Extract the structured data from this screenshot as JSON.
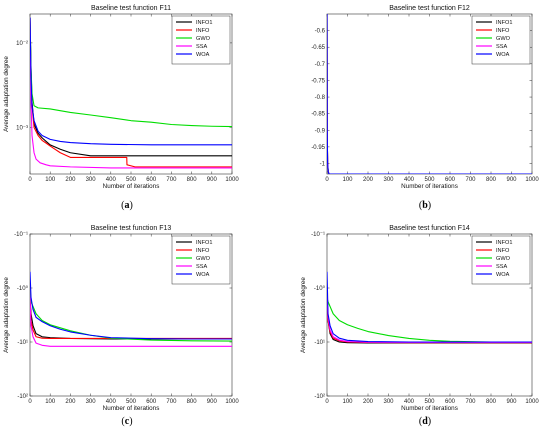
{
  "chart_data": [
    {
      "type": "line",
      "title": "Baseline test function F11",
      "xlabel": "Number of iterations",
      "ylabel": "Average adaptation degree",
      "yscale": "log",
      "xlim": [
        0,
        1000
      ],
      "ylim": [
        0.00028,
        0.022
      ],
      "x_ticks": [
        "0",
        "100",
        "200",
        "300",
        "400",
        "500",
        "600",
        "700",
        "800",
        "900",
        "1000"
      ],
      "y_ticks": [
        {
          "v": 0.01,
          "label": "10⁻²"
        },
        {
          "v": 0.001,
          "label": "10⁻³"
        }
      ],
      "caption_mark": "a",
      "legend_position": "top-right",
      "series": [
        {
          "name": "INFO1",
          "color": "#000000",
          "x": [
            0,
            5,
            10,
            20,
            40,
            60,
            80,
            100,
            150,
            200,
            300,
            500,
            1000
          ],
          "y": [
            0.02,
            0.005,
            0.002,
            0.0011,
            0.00085,
            0.00075,
            0.00068,
            0.00062,
            0.00055,
            0.0005,
            0.00046,
            0.00046,
            0.00046
          ]
        },
        {
          "name": "INFO",
          "color": "#ff0000",
          "x": [
            0,
            5,
            10,
            20,
            40,
            60,
            80,
            100,
            150,
            200,
            300,
            479,
            480,
            520,
            1000
          ],
          "y": [
            0.02,
            0.004,
            0.0018,
            0.001,
            0.0008,
            0.0007,
            0.00065,
            0.0006,
            0.0005,
            0.00044,
            0.00044,
            0.00044,
            0.00036,
            0.00034,
            0.00034
          ]
        },
        {
          "name": "GWO",
          "color": "#00dd00",
          "x": [
            0,
            5,
            10,
            20,
            40,
            100,
            200,
            300,
            400,
            500,
            600,
            700,
            800,
            900,
            1000
          ],
          "y": [
            0.02,
            0.005,
            0.0025,
            0.0018,
            0.0017,
            0.00165,
            0.0015,
            0.0014,
            0.0013,
            0.0012,
            0.00115,
            0.00108,
            0.00105,
            0.00103,
            0.00102
          ]
        },
        {
          "name": "SSA",
          "color": "#ff00ff",
          "x": [
            0,
            5,
            10,
            20,
            30,
            50,
            80,
            100,
            200,
            400,
            1000
          ],
          "y": [
            0.02,
            0.002,
            0.0008,
            0.0005,
            0.00042,
            0.00038,
            0.00036,
            0.00035,
            0.00034,
            0.00033,
            0.00033
          ]
        },
        {
          "name": "WOA",
          "color": "#0000ff",
          "x": [
            0,
            5,
            10,
            20,
            40,
            60,
            100,
            150,
            200,
            300,
            400,
            600,
            800,
            1000
          ],
          "y": [
            0.02,
            0.004,
            0.0018,
            0.0012,
            0.0009,
            0.0008,
            0.00072,
            0.00068,
            0.00066,
            0.00064,
            0.00063,
            0.00062,
            0.00062,
            0.00062
          ]
        }
      ]
    },
    {
      "type": "line",
      "title": "Baseline test function F12",
      "xlabel": "Number of iterations",
      "ylabel": "",
      "yscale": "linear",
      "xlim": [
        0,
        1000
      ],
      "ylim": [
        -1.0316,
        -0.55
      ],
      "x_ticks": [
        "0",
        "100",
        "200",
        "300",
        "400",
        "500",
        "600",
        "700",
        "800",
        "900",
        "1000"
      ],
      "y_ticks": [
        {
          "v": -0.6,
          "label": "-0.6"
        },
        {
          "v": -0.65,
          "label": "-0.65"
        },
        {
          "v": -0.7,
          "label": "-0.7"
        },
        {
          "v": -0.75,
          "label": "-0.75"
        },
        {
          "v": -0.8,
          "label": "-0.8"
        },
        {
          "v": -0.85,
          "label": "-0.85"
        },
        {
          "v": -0.9,
          "label": "-0.9"
        },
        {
          "v": -0.95,
          "label": "-0.95"
        },
        {
          "v": -1.0,
          "label": "-1"
        }
      ],
      "caption_mark": "b",
      "legend_position": "top-right",
      "series": [
        {
          "name": "INFO1",
          "color": "#000000",
          "x": [
            0,
            1,
            3,
            6,
            10,
            1000
          ],
          "y": [
            -0.55,
            -0.9,
            -1.0,
            -1.025,
            -1.0316,
            -1.0316
          ]
        },
        {
          "name": "INFO",
          "color": "#ff0000",
          "x": [
            0,
            1,
            3,
            6,
            10,
            1000
          ],
          "y": [
            -0.55,
            -0.9,
            -1.0,
            -1.025,
            -1.0316,
            -1.0316
          ]
        },
        {
          "name": "GWO",
          "color": "#00dd00",
          "x": [
            0,
            1,
            3,
            6,
            10,
            1000
          ],
          "y": [
            -0.55,
            -0.9,
            -1.0,
            -1.025,
            -1.0316,
            -1.0316
          ]
        },
        {
          "name": "SSA",
          "color": "#ff00ff",
          "x": [
            0,
            1,
            3,
            6,
            10,
            1000
          ],
          "y": [
            -0.55,
            -0.9,
            -1.0,
            -1.025,
            -1.0316,
            -1.0316
          ]
        },
        {
          "name": "WOA",
          "color": "#0000ff",
          "x": [
            0,
            1,
            3,
            6,
            10,
            1000
          ],
          "y": [
            -0.55,
            -0.9,
            -1.0,
            -1.025,
            -1.0316,
            -1.0316
          ]
        }
      ]
    },
    {
      "type": "line",
      "title": "Baseline test function F13",
      "xlabel": "Number of iterations",
      "ylabel": "Average adaptation degree",
      "yscale": "symlog-negative",
      "xlim": [
        0,
        1000
      ],
      "ylim": [
        -100,
        -0.1
      ],
      "x_ticks": [
        "0",
        "100",
        "200",
        "300",
        "400",
        "500",
        "600",
        "700",
        "800",
        "900",
        "1000"
      ],
      "y_ticks": [
        {
          "v": -0.1,
          "label": "-10⁻¹"
        },
        {
          "v": -1,
          "label": "-10⁰"
        },
        {
          "v": -10,
          "label": "-10¹"
        },
        {
          "v": -100,
          "label": "-10²"
        }
      ],
      "caption_mark": "c",
      "legend_position": "top-right",
      "series": [
        {
          "name": "INFO1",
          "color": "#000000",
          "x": [
            0,
            5,
            15,
            30,
            60,
            100,
            200,
            400,
            700,
            1000
          ],
          "y": [
            -1.5,
            -3,
            -5,
            -7,
            -8,
            -8.3,
            -8.6,
            -8.8,
            -8.8,
            -8.8
          ]
        },
        {
          "name": "INFO",
          "color": "#ff0000",
          "x": [
            0,
            5,
            15,
            30,
            60,
            100,
            200,
            400,
            700,
            1000
          ],
          "y": [
            -1.5,
            -4,
            -6,
            -8,
            -8.5,
            -8.6,
            -8.6,
            -8.6,
            -8.6,
            -8.6
          ]
        },
        {
          "name": "GWO",
          "color": "#00dd00",
          "x": [
            0,
            5,
            15,
            30,
            60,
            100,
            200,
            300,
            400,
            600,
            800,
            1000
          ],
          "y": [
            -1.5,
            -1.8,
            -2.2,
            -3,
            -4,
            -4.8,
            -6.2,
            -7.5,
            -8.5,
            -9.2,
            -9.5,
            -9.6
          ]
        },
        {
          "name": "SSA",
          "color": "#ff00ff",
          "x": [
            0,
            5,
            15,
            30,
            60,
            100,
            200,
            400,
            1000
          ],
          "y": [
            -1.5,
            -5,
            -8,
            -10.5,
            -11.5,
            -12,
            -12,
            -12,
            -12
          ]
        },
        {
          "name": "WOA",
          "color": "#0000ff",
          "x": [
            0,
            5,
            15,
            30,
            60,
            100,
            150,
            200,
            300,
            400,
            600,
            800,
            1000
          ],
          "y": [
            -0.5,
            -1.5,
            -2.5,
            -3.5,
            -4.2,
            -5,
            -5.8,
            -6.5,
            -7.5,
            -8.3,
            -8.7,
            -8.8,
            -8.8
          ]
        }
      ]
    },
    {
      "type": "line",
      "title": "Baseline test function F14",
      "xlabel": "Number of iterations",
      "ylabel": "Average adaptation degree",
      "yscale": "symlog-negative",
      "xlim": [
        0,
        1000
      ],
      "ylim": [
        -100,
        -0.1
      ],
      "x_ticks": [
        "0",
        "100",
        "200",
        "300",
        "400",
        "500",
        "600",
        "700",
        "800",
        "900",
        "1000"
      ],
      "y_ticks": [
        {
          "v": -0.1,
          "label": "-10⁻¹"
        },
        {
          "v": -1,
          "label": "-10⁰"
        },
        {
          "v": -10,
          "label": "-10¹"
        },
        {
          "v": -100,
          "label": "-10²"
        }
      ],
      "caption_mark": "d",
      "legend_position": "top-right",
      "series": [
        {
          "name": "INFO1",
          "color": "#000000",
          "x": [
            0,
            5,
            15,
            30,
            60,
            100,
            200,
            400,
            1000
          ],
          "y": [
            -1.5,
            -4,
            -7,
            -9,
            -10,
            -10.3,
            -10.4,
            -10.4,
            -10.4
          ]
        },
        {
          "name": "INFO",
          "color": "#ff0000",
          "x": [
            0,
            5,
            15,
            30,
            60,
            100,
            200,
            400,
            1000
          ],
          "y": [
            -1.5,
            -4,
            -6.5,
            -8.5,
            -9.5,
            -10,
            -10.2,
            -10.3,
            -10.3
          ]
        },
        {
          "name": "GWO",
          "color": "#00dd00",
          "x": [
            0,
            5,
            15,
            30,
            60,
            100,
            150,
            200,
            300,
            400,
            500,
            600,
            800,
            1000
          ],
          "y": [
            -1.5,
            -1.8,
            -2.2,
            -3,
            -4,
            -4.8,
            -5.6,
            -6.4,
            -7.6,
            -8.6,
            -9.3,
            -9.7,
            -10,
            -10.1
          ]
        },
        {
          "name": "SSA",
          "color": "#ff00ff",
          "x": [
            0,
            5,
            15,
            30,
            60,
            100,
            200,
            400,
            1000
          ],
          "y": [
            -1.5,
            -3.5,
            -6,
            -8,
            -9.2,
            -9.8,
            -10.1,
            -10.2,
            -10.2
          ]
        },
        {
          "name": "WOA",
          "color": "#0000ff",
          "x": [
            0,
            5,
            15,
            30,
            60,
            100,
            200,
            400,
            1000
          ],
          "y": [
            -0.5,
            -3,
            -5,
            -7,
            -8.5,
            -9.3,
            -9.8,
            -10,
            -10
          ]
        }
      ]
    }
  ]
}
